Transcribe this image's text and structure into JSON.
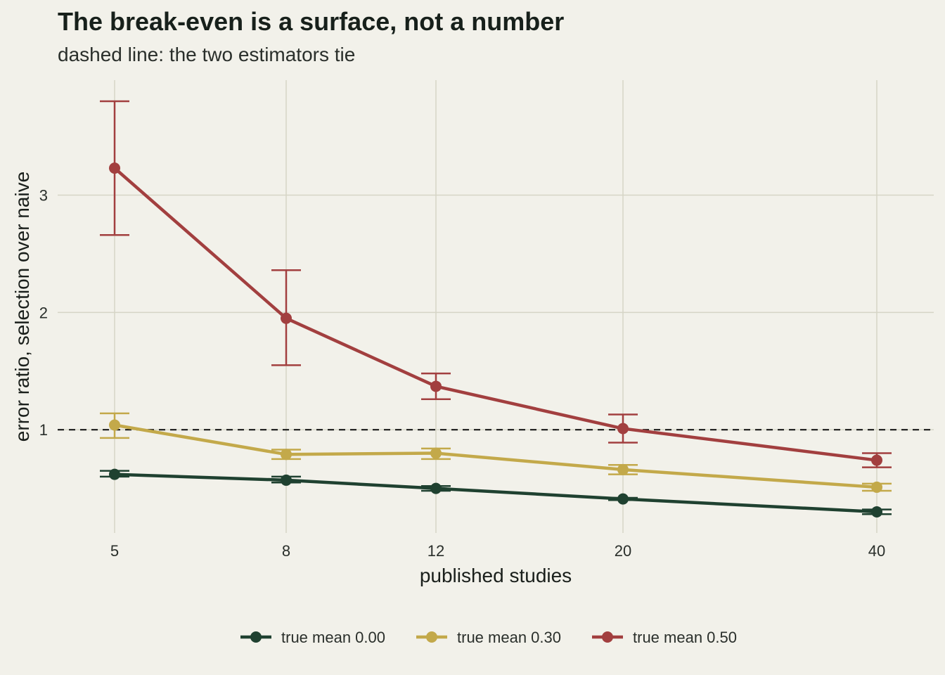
{
  "chart_data": {
    "type": "line",
    "title": "The break-even is a surface, not a number",
    "subtitle": "dashed line: the two estimators tie",
    "xlabel": "published studies",
    "ylabel": "error ratio, selection over naive",
    "x": [
      5,
      8,
      12,
      20,
      40
    ],
    "x_tick_labels": [
      "5",
      "8",
      "12",
      "20",
      "40"
    ],
    "y_ticks": [
      1,
      2,
      3
    ],
    "y_tick_labels": [
      "1",
      "2",
      "3"
    ],
    "ylim": [
      0.12,
      3.98
    ],
    "reference_line": {
      "y": 1,
      "style": "dashed",
      "color": "#1a1a1a"
    },
    "grid": true,
    "legend_position": "bottom",
    "series": [
      {
        "name": "true mean 0.00",
        "color": "#1f4130",
        "values": [
          0.62,
          0.57,
          0.5,
          0.41,
          0.3
        ],
        "lower": [
          0.6,
          0.55,
          0.48,
          0.4,
          0.28
        ],
        "upper": [
          0.65,
          0.6,
          0.52,
          0.42,
          0.32
        ]
      },
      {
        "name": "true mean 0.30",
        "color": "#c3a94a",
        "values": [
          1.04,
          0.79,
          0.8,
          0.66,
          0.51
        ],
        "lower": [
          0.93,
          0.75,
          0.75,
          0.62,
          0.48
        ],
        "upper": [
          1.14,
          0.83,
          0.84,
          0.7,
          0.54
        ]
      },
      {
        "name": "true mean 0.50",
        "color": "#a23f3f",
        "values": [
          3.23,
          1.95,
          1.37,
          1.01,
          0.74
        ],
        "lower": [
          2.66,
          1.55,
          1.26,
          0.89,
          0.68
        ],
        "upper": [
          3.8,
          2.36,
          1.48,
          1.13,
          0.8
        ]
      }
    ]
  }
}
